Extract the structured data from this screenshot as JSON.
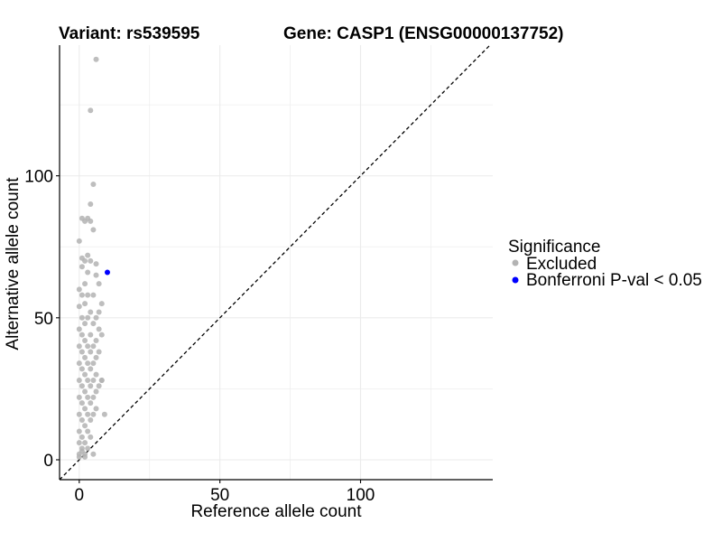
{
  "chart_data": {
    "type": "scatter",
    "title_left": "Variant: rs539595",
    "title_right": "Gene: CASP1 (ENSG00000137752)",
    "xlabel": "Reference allele count",
    "ylabel": "Alternative allele count",
    "xlim": [
      -7,
      147
    ],
    "ylim": [
      -7,
      146
    ],
    "x_ticks": [
      0,
      50,
      100
    ],
    "y_ticks": [
      0,
      50,
      100
    ],
    "grid": true,
    "diagonal": "y = x (dashed)",
    "legend": {
      "title": "Significance",
      "placement": "right",
      "entries": [
        {
          "label": "Excluded",
          "color": "#b3b3b3"
        },
        {
          "label": "Bonferroni P-val < 0.05",
          "color": "#0000ff"
        }
      ]
    },
    "series": [
      {
        "name": "Excluded",
        "color": "#b3b3b3",
        "points": [
          [
            6,
            141
          ],
          [
            4,
            123
          ],
          [
            5,
            97
          ],
          [
            4,
            90
          ],
          [
            1,
            85
          ],
          [
            3,
            85
          ],
          [
            2,
            84
          ],
          [
            4,
            84
          ],
          [
            5,
            81
          ],
          [
            0,
            77
          ],
          [
            3,
            72
          ],
          [
            1,
            71
          ],
          [
            2,
            70
          ],
          [
            4,
            70
          ],
          [
            6,
            69
          ],
          [
            1,
            68
          ],
          [
            3,
            66
          ],
          [
            6,
            65
          ],
          [
            2,
            62
          ],
          [
            7,
            62
          ],
          [
            0,
            60
          ],
          [
            1,
            58
          ],
          [
            3,
            58
          ],
          [
            5,
            58
          ],
          [
            8,
            55
          ],
          [
            2,
            55
          ],
          [
            0,
            54
          ],
          [
            4,
            52
          ],
          [
            7,
            52
          ],
          [
            1,
            50
          ],
          [
            3,
            50
          ],
          [
            6,
            50
          ],
          [
            2,
            48
          ],
          [
            5,
            48
          ],
          [
            0,
            46
          ],
          [
            7,
            46
          ],
          [
            1,
            44
          ],
          [
            4,
            44
          ],
          [
            8,
            44
          ],
          [
            2,
            42
          ],
          [
            6,
            42
          ],
          [
            0,
            40
          ],
          [
            3,
            40
          ],
          [
            5,
            40
          ],
          [
            1,
            38
          ],
          [
            4,
            38
          ],
          [
            7,
            38
          ],
          [
            2,
            36
          ],
          [
            6,
            36
          ],
          [
            0,
            34
          ],
          [
            3,
            34
          ],
          [
            5,
            34
          ],
          [
            1,
            32
          ],
          [
            4,
            32
          ],
          [
            2,
            30
          ],
          [
            6,
            30
          ],
          [
            0,
            28
          ],
          [
            3,
            28
          ],
          [
            5,
            28
          ],
          [
            1,
            26
          ],
          [
            4,
            26
          ],
          [
            7,
            26
          ],
          [
            2,
            24
          ],
          [
            6,
            24
          ],
          [
            0,
            22
          ],
          [
            3,
            22
          ],
          [
            5,
            22
          ],
          [
            8,
            28
          ],
          [
            1,
            20
          ],
          [
            4,
            20
          ],
          [
            2,
            18
          ],
          [
            6,
            18
          ],
          [
            0,
            16
          ],
          [
            3,
            16
          ],
          [
            5,
            16
          ],
          [
            1,
            14
          ],
          [
            4,
            14
          ],
          [
            2,
            12
          ],
          [
            0,
            10
          ],
          [
            3,
            10
          ],
          [
            1,
            8
          ],
          [
            4,
            8
          ],
          [
            0,
            6
          ],
          [
            2,
            6
          ],
          [
            1,
            4
          ],
          [
            3,
            4
          ],
          [
            0,
            2
          ],
          [
            2,
            2
          ],
          [
            5,
            2
          ],
          [
            9,
            16
          ],
          [
            8,
            28
          ],
          [
            1,
            3
          ],
          [
            0,
            1
          ],
          [
            2,
            1
          ]
        ]
      },
      {
        "name": "Bonferroni P-val < 0.05",
        "color": "#0000ff",
        "points": [
          [
            10,
            66
          ]
        ]
      }
    ]
  }
}
